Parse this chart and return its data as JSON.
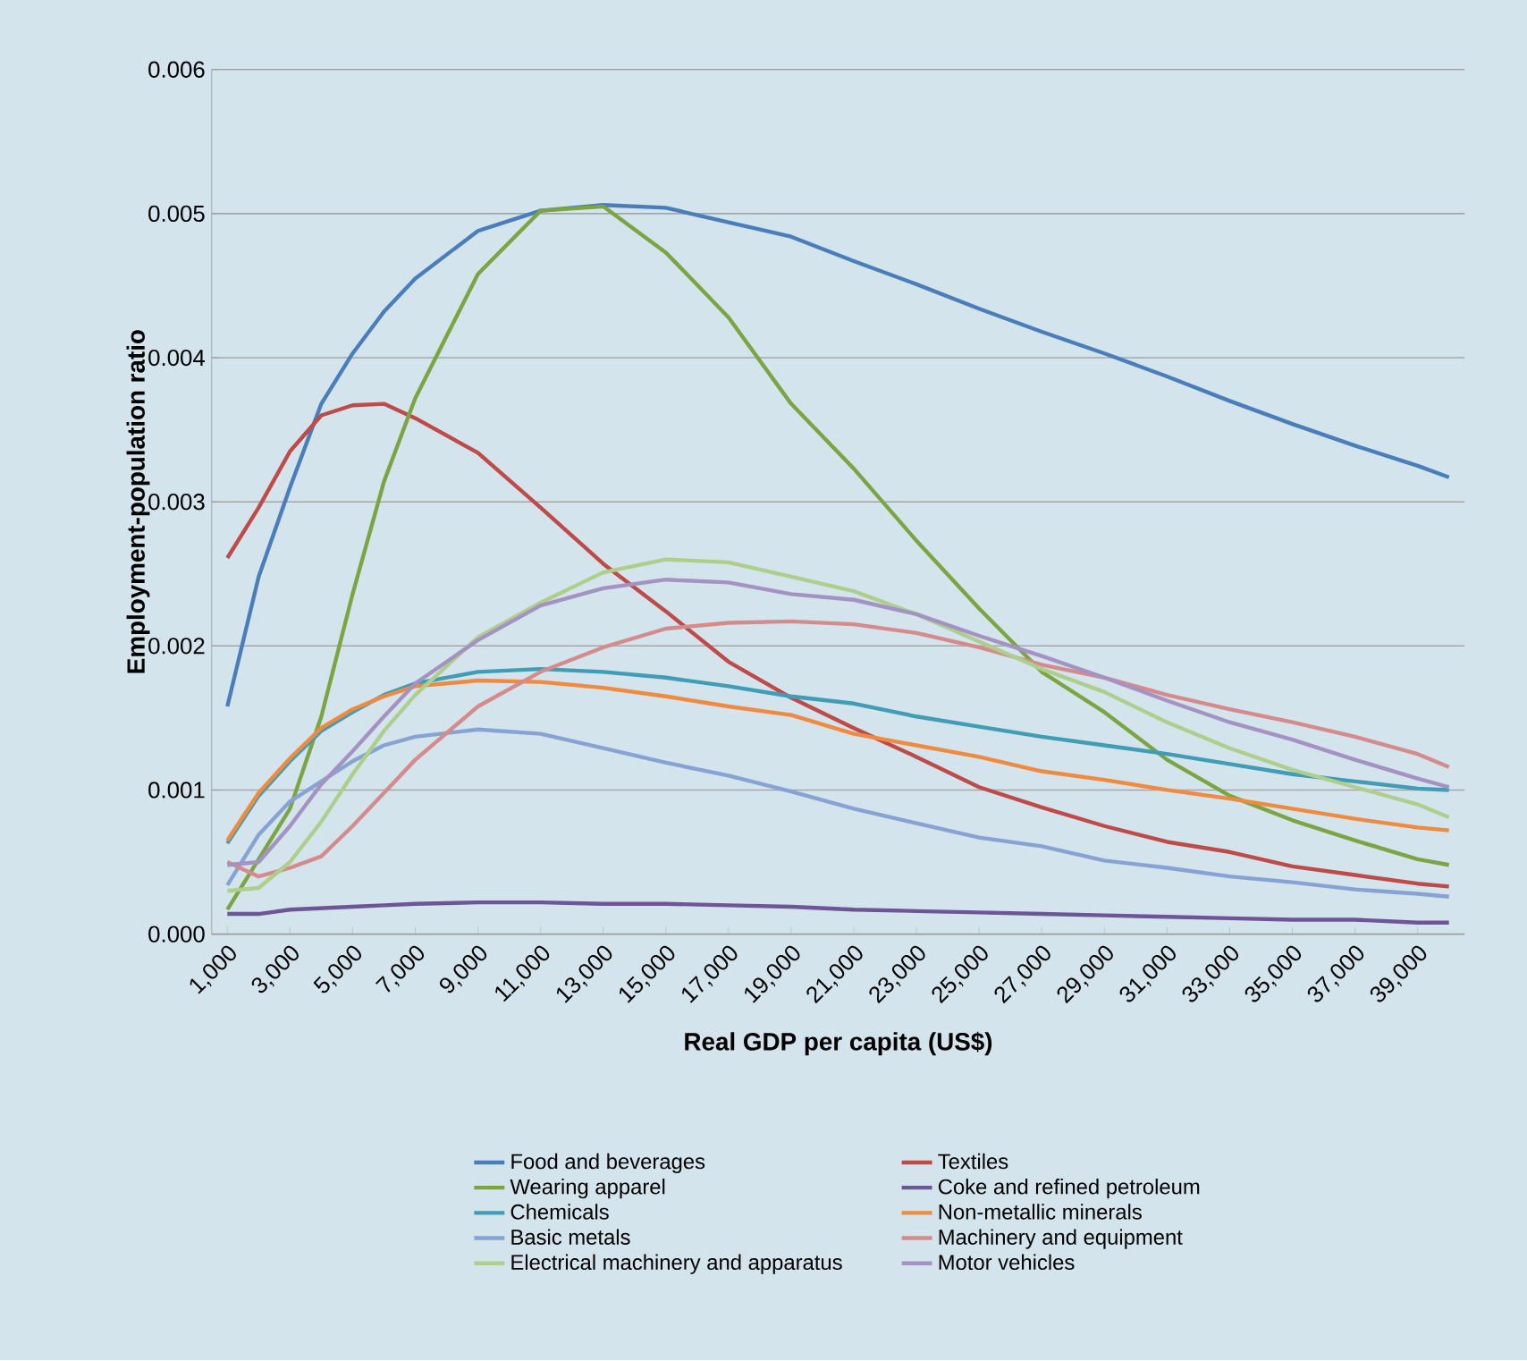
{
  "chart_data": {
    "type": "line",
    "xlabel": "Real GDP per capita (US$)",
    "ylabel": "Employment-population ratio",
    "x": [
      1000,
      2000,
      3000,
      4000,
      5000,
      6000,
      7000,
      9000,
      11000,
      13000,
      15000,
      17000,
      19000,
      21000,
      23000,
      25000,
      27000,
      29000,
      31000,
      33000,
      35000,
      37000,
      39000,
      40000
    ],
    "xlim": [
      500,
      40500
    ],
    "ylim": [
      0,
      0.006
    ],
    "xticks": [
      {
        "value": 1000,
        "label": "1,000"
      },
      {
        "value": 3000,
        "label": "3,000"
      },
      {
        "value": 5000,
        "label": "5,000"
      },
      {
        "value": 7000,
        "label": "7,000"
      },
      {
        "value": 9000,
        "label": "9,000"
      },
      {
        "value": 11000,
        "label": "11,000"
      },
      {
        "value": 13000,
        "label": "13,000"
      },
      {
        "value": 15000,
        "label": "15,000"
      },
      {
        "value": 17000,
        "label": "17,000"
      },
      {
        "value": 19000,
        "label": "19,000"
      },
      {
        "value": 21000,
        "label": "21,000"
      },
      {
        "value": 23000,
        "label": "23,000"
      },
      {
        "value": 25000,
        "label": "25,000"
      },
      {
        "value": 27000,
        "label": "27,000"
      },
      {
        "value": 29000,
        "label": "29,000"
      },
      {
        "value": 31000,
        "label": "31,000"
      },
      {
        "value": 33000,
        "label": "33,000"
      },
      {
        "value": 35000,
        "label": "35,000"
      },
      {
        "value": 37000,
        "label": "37,000"
      },
      {
        "value": 39000,
        "label": "39,000"
      }
    ],
    "yticks": [
      {
        "value": 0,
        "label": "0.000"
      },
      {
        "value": 0.001,
        "label": "0.001"
      },
      {
        "value": 0.002,
        "label": "0.002"
      },
      {
        "value": 0.003,
        "label": "0.003"
      },
      {
        "value": 0.004,
        "label": "0.004"
      },
      {
        "value": 0.005,
        "label": "0.005"
      },
      {
        "value": 0.006,
        "label": "0.006"
      }
    ],
    "grid": "y",
    "legend": "bottom",
    "marker": "none",
    "line_style": "solid",
    "series": [
      {
        "name": "Food and beverages",
        "color": "#4a7ebb",
        "values": [
          0.00158,
          0.00248,
          0.0031,
          0.00368,
          0.00403,
          0.00432,
          0.00455,
          0.00488,
          0.00502,
          0.00506,
          0.00504,
          0.00494,
          0.00484,
          0.00467,
          0.00451,
          0.00434,
          0.00418,
          0.00403,
          0.00387,
          0.0037,
          0.00354,
          0.00339,
          0.00325,
          0.00317
        ]
      },
      {
        "name": "Textiles",
        "color": "#be4b48",
        "values": [
          0.00261,
          0.00296,
          0.00335,
          0.0036,
          0.00367,
          0.00368,
          0.00358,
          0.00334,
          0.00296,
          0.00257,
          0.00224,
          0.00189,
          0.00164,
          0.00143,
          0.00123,
          0.00102,
          0.00088,
          0.00075,
          0.00064,
          0.00057,
          0.00047,
          0.00041,
          0.00035,
          0.00033
        ]
      },
      {
        "name": "Wearing apparel",
        "color": "#7ba543",
        "values": [
          0.00017,
          0.00052,
          0.00087,
          0.00151,
          0.00236,
          0.00314,
          0.00372,
          0.00458,
          0.00502,
          0.00505,
          0.00473,
          0.00428,
          0.00368,
          0.00323,
          0.00273,
          0.00226,
          0.00182,
          0.00154,
          0.00121,
          0.00096,
          0.00079,
          0.00065,
          0.00052,
          0.00048
        ]
      },
      {
        "name": "Coke and refined petroleum",
        "color": "#6e5597",
        "values": [
          0.00014,
          0.00014,
          0.00017,
          0.00018,
          0.00019,
          0.0002,
          0.00021,
          0.00022,
          0.00022,
          0.00021,
          0.00021,
          0.0002,
          0.00019,
          0.00017,
          0.00016,
          0.00015,
          0.00014,
          0.00013,
          0.00012,
          0.00011,
          0.0001,
          0.0001,
          8e-05,
          8e-05
        ]
      },
      {
        "name": "Chemicals",
        "color": "#3f9db5",
        "values": [
          0.00063,
          0.00096,
          0.0012,
          0.00141,
          0.00154,
          0.00166,
          0.00174,
          0.00182,
          0.00184,
          0.00182,
          0.00178,
          0.00172,
          0.00165,
          0.0016,
          0.00151,
          0.00144,
          0.00137,
          0.00131,
          0.00125,
          0.00118,
          0.00111,
          0.00106,
          0.00101,
          0.001
        ]
      },
      {
        "name": "Non-metallic minerals",
        "color": "#ef8a3f",
        "values": [
          0.00065,
          0.00098,
          0.00122,
          0.00143,
          0.00156,
          0.00165,
          0.00172,
          0.00176,
          0.00175,
          0.00171,
          0.00165,
          0.00158,
          0.00152,
          0.00139,
          0.00131,
          0.00123,
          0.00113,
          0.00107,
          0.001,
          0.00094,
          0.00087,
          0.0008,
          0.00074,
          0.00072
        ]
      },
      {
        "name": "Basic metals",
        "color": "#87a3d3",
        "values": [
          0.00034,
          0.00069,
          0.00092,
          0.00106,
          0.0012,
          0.00131,
          0.00137,
          0.00142,
          0.00139,
          0.00129,
          0.00119,
          0.0011,
          0.00099,
          0.00087,
          0.00077,
          0.00067,
          0.00061,
          0.00051,
          0.00046,
          0.0004,
          0.00036,
          0.00031,
          0.00028,
          0.00026
        ]
      },
      {
        "name": "Machinery and equipment",
        "color": "#d58b8b",
        "values": [
          0.0005,
          0.0004,
          0.00046,
          0.00054,
          0.00075,
          0.00098,
          0.00121,
          0.00158,
          0.00182,
          0.00199,
          0.00212,
          0.00216,
          0.00217,
          0.00215,
          0.00209,
          0.00199,
          0.00187,
          0.00178,
          0.00166,
          0.00156,
          0.00147,
          0.00137,
          0.00125,
          0.00116
        ]
      },
      {
        "name": "Electrical machinery and apparatus",
        "color": "#aecf8c",
        "values": [
          0.0003,
          0.00032,
          0.0005,
          0.00078,
          0.00111,
          0.00141,
          0.00166,
          0.00206,
          0.0023,
          0.00251,
          0.0026,
          0.00258,
          0.00248,
          0.00238,
          0.00222,
          0.00203,
          0.00184,
          0.00168,
          0.00147,
          0.00129,
          0.00114,
          0.00102,
          0.0009,
          0.00081
        ]
      },
      {
        "name": "Motor vehicles",
        "color": "#a493c2",
        "values": [
          0.00048,
          0.0005,
          0.00075,
          0.00104,
          0.00127,
          0.00151,
          0.00174,
          0.00204,
          0.00228,
          0.0024,
          0.00246,
          0.00244,
          0.00236,
          0.00232,
          0.00222,
          0.00207,
          0.00193,
          0.00178,
          0.00162,
          0.00147,
          0.00135,
          0.00121,
          0.00108,
          0.00102
        ]
      }
    ]
  }
}
